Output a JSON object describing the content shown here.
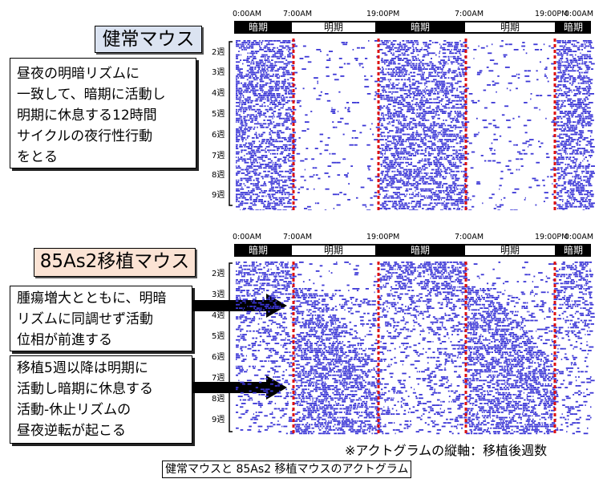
{
  "healthy": {
    "title": "健常マウス",
    "lines": [
      "昼夜の明暗リズムに",
      "一致して、暗期に活動し",
      "明期に休息する12時間",
      "サイクルの夜行性行動",
      "をとる"
    ]
  },
  "transplant": {
    "title": "85As2移植マウス",
    "box1_lines": [
      "腫瘍増大とともに、明暗",
      "リズムに同調せず活動",
      "位相が前進する"
    ],
    "box2_lines": [
      "移植5週以降は明期に",
      "活動し暗期に休息する",
      "活動-休止リズムの",
      "昼夜逆転が起こる"
    ]
  },
  "time_labels": [
    "0:00AM",
    "7:00AM",
    "19:00PM",
    "7:00AM",
    "19:00PM",
    "0:00AM"
  ],
  "phase_labels": [
    "暗期",
    "明期",
    "暗期",
    "明期",
    "暗期"
  ],
  "week_labels": [
    "2週",
    "3週",
    "4週",
    "5週",
    "6週",
    "7週",
    "8週",
    "9週"
  ],
  "footnote": "※アクトグラムの縦軸：移植後週数",
  "caption": "健常マウスと 85As2 移植マウスのアクトグラム",
  "colors": {
    "activity": "#3b36d6",
    "marker": "#dd1111",
    "healthy_bg": "#dbe3f1",
    "transplant_bg": "#fbe3d4"
  }
}
